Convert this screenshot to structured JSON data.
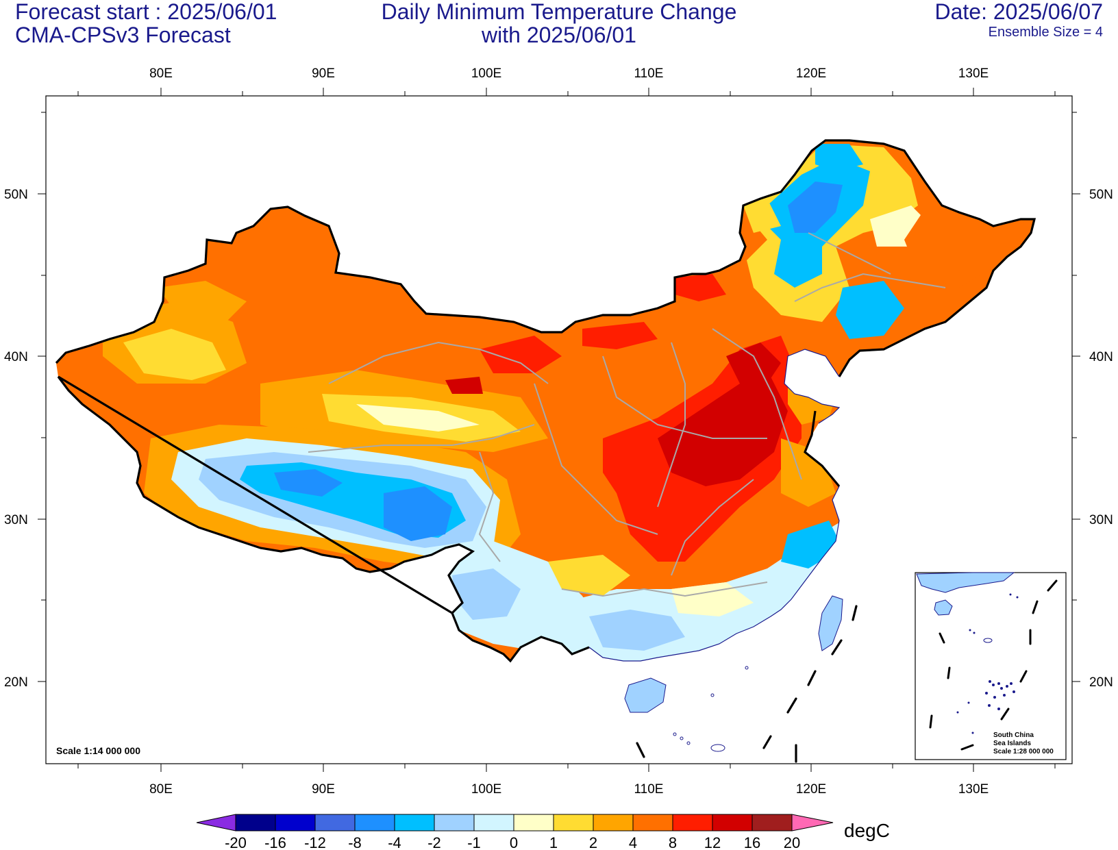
{
  "header": {
    "forecast_start": "Forecast start : 2025/06/01",
    "model": "CMA-CPSv3 Forecast",
    "title_line1": "Daily Minimum Temperature Change",
    "title_line2": "with 2025/06/01",
    "date": "Date: 2025/06/07",
    "ensemble": "Ensemble Size = 4"
  },
  "map": {
    "lon_ticks": [
      "80E",
      "90E",
      "100E",
      "110E",
      "120E",
      "130E"
    ],
    "lat_ticks": [
      "50N",
      "40N",
      "30N",
      "20N"
    ],
    "scale": "Scale 1:14 000 000",
    "inset": {
      "title_line1": "South China",
      "title_line2": "Sea Islands",
      "scale": "Scale 1:28 000 000"
    }
  },
  "colorbar": {
    "unit": "degC",
    "labels": [
      "-20",
      "-16",
      "-12",
      "-8",
      "-4",
      "-2",
      "-1",
      "0",
      "1",
      "2",
      "4",
      "8",
      "12",
      "16",
      "20"
    ],
    "colors": [
      "#8a2be2",
      "#00008b",
      "#0000cd",
      "#4169e1",
      "#1e90ff",
      "#00bfff",
      "#a0d2ff",
      "#d2f5ff",
      "#ffffc8",
      "#ffdc32",
      "#ffa500",
      "#ff7000",
      "#ff1e00",
      "#d20000",
      "#a01e1e",
      "#ff69b4"
    ]
  }
}
